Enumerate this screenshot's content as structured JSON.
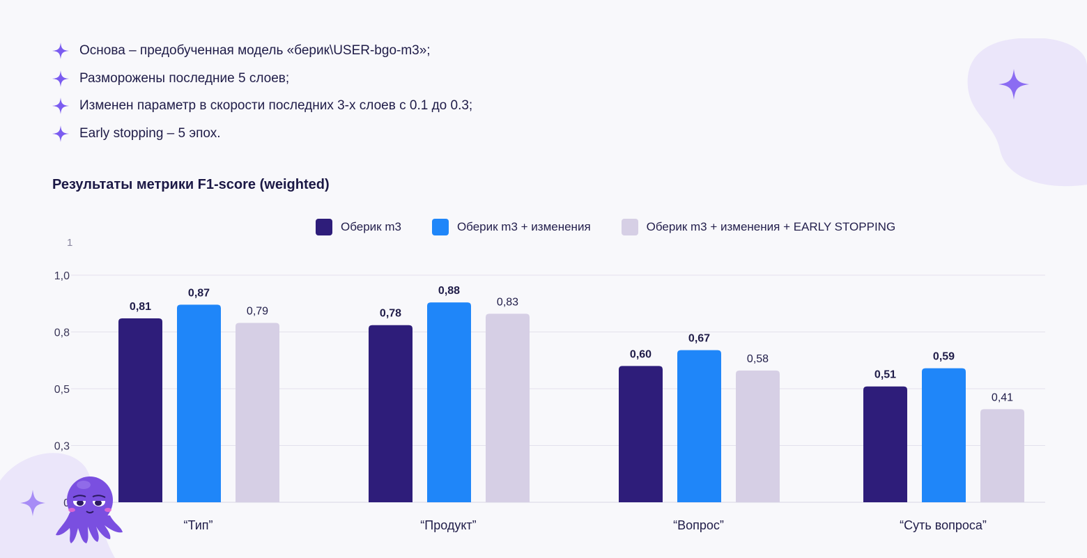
{
  "bullets": [
    "Основа – предобученная модель «берик\\USER-bgo-m3»;",
    "Разморожены последние 5 слоев;",
    "Изменен параметр в скорости последних 3-х слоев с 0.1 до 0.3;",
    "Early stopping – 5 эпох."
  ],
  "icons": {
    "bullet": "four-point-sparkle-icon",
    "decor_top_right": "four-point-sparkle-icon",
    "decor_bottom_left": "four-point-sparkle-icon",
    "mascot": "octopus-mascot"
  },
  "colors": {
    "accent": "#7b5cf0",
    "series_1": "#2e1d7a",
    "series_2": "#1f86f9",
    "series_3": "#d6cfe5",
    "blob": "#ebe6fa"
  },
  "chart_title": "Результаты метрики F1-score (weighted)",
  "chart_data": {
    "type": "bar",
    "title": "Результаты метрики F1-score (weighted)",
    "xlabel": "",
    "ylabel": "",
    "categories": [
      "“Тип”",
      "“Продукт”",
      "“Вопрос”",
      "“Суть вопроса”"
    ],
    "series": [
      {
        "name": "Оберик m3",
        "values": [
          0.81,
          0.78,
          0.6,
          0.51
        ],
        "labels": [
          "0,81",
          "0,78",
          "0,60",
          "0,51"
        ],
        "color": "#2e1d7a"
      },
      {
        "name": "Оберик m3 + изменения",
        "values": [
          0.87,
          0.88,
          0.67,
          0.59
        ],
        "labels": [
          "0,87",
          "0,88",
          "0,67",
          "0,59"
        ],
        "color": "#1f86f9"
      },
      {
        "name": "Оберик m3 + изменения + EARLY STOPPING",
        "values": [
          0.79,
          0.83,
          0.58,
          0.41
        ],
        "labels": [
          "0,79",
          "0,83",
          "0,58",
          "0,41"
        ],
        "color": "#d6cfe5"
      }
    ],
    "y_ticks": [
      {
        "value": 0,
        "label": "0"
      },
      {
        "value": 0.25,
        "label": "0,3"
      },
      {
        "value": 0.5,
        "label": "0,5"
      },
      {
        "value": 0.75,
        "label": "0,8"
      },
      {
        "value": 1.0,
        "label": "1,0"
      }
    ],
    "y_top_label": "1",
    "ylim": [
      0,
      1.0
    ],
    "grid": true,
    "legend_position": "top"
  }
}
